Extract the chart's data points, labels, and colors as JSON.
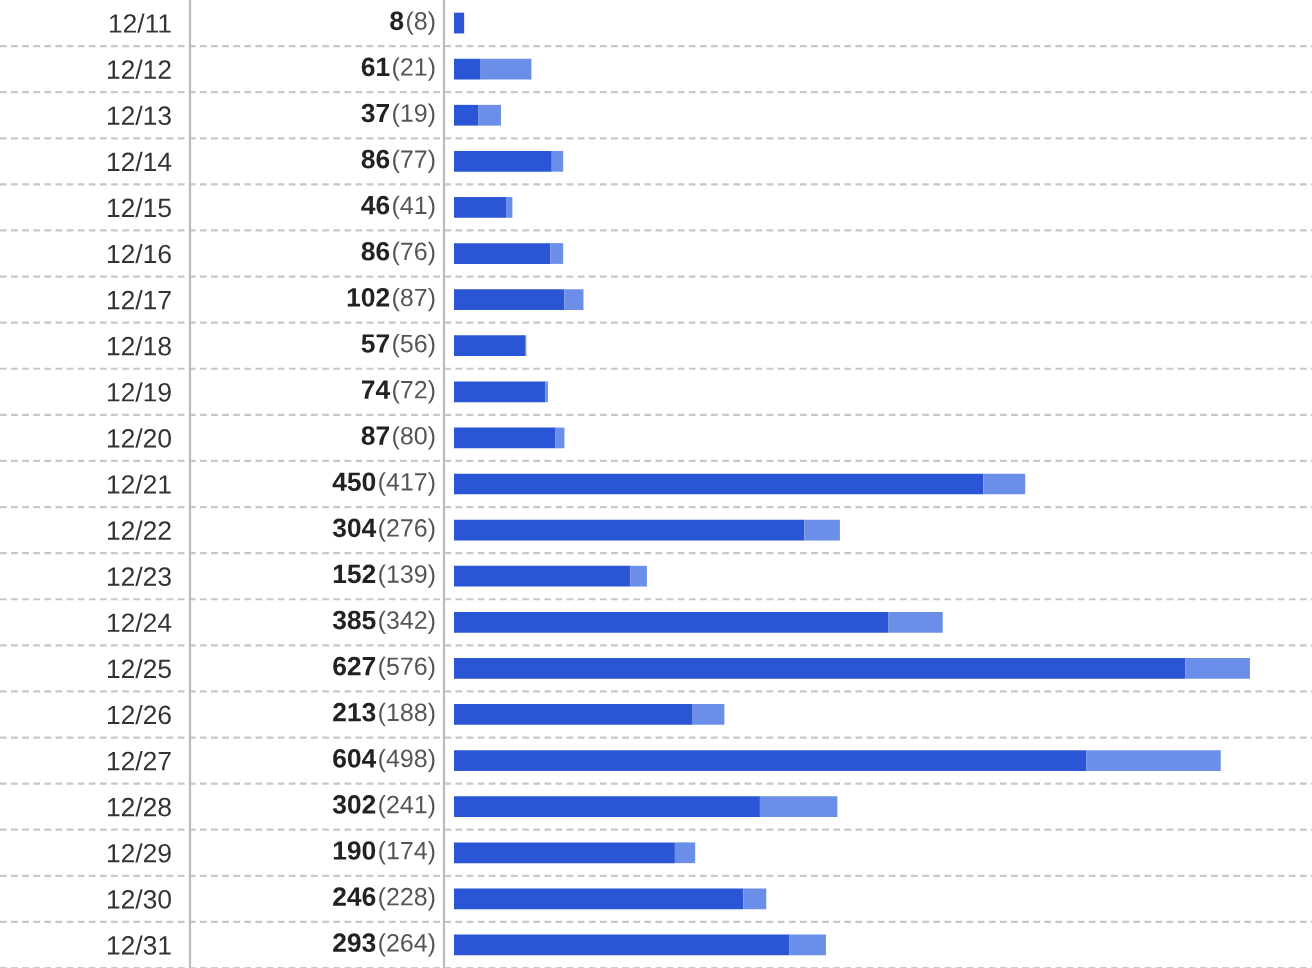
{
  "chart_data": {
    "type": "bar",
    "orientation": "horizontal",
    "stacked": true,
    "tick_labels": "y",
    "legend": false,
    "categories": [
      "12/11",
      "12/12",
      "12/13",
      "12/14",
      "12/15",
      "12/16",
      "12/17",
      "12/18",
      "12/19",
      "12/20",
      "12/21",
      "12/22",
      "12/23",
      "12/24",
      "12/25",
      "12/26",
      "12/27",
      "12/28",
      "12/29",
      "12/30",
      "12/31"
    ],
    "series": [
      {
        "color": "#2a56d6",
        "values": [
          8,
          21,
          19,
          77,
          41,
          76,
          87,
          56,
          72,
          80,
          417,
          276,
          139,
          342,
          576,
          188,
          498,
          241,
          174,
          228,
          264
        ],
        "value_labels": [
          "(8)",
          "(21)",
          "(19)",
          "(77)",
          "(41)",
          "(76)",
          "(87)",
          "(56)",
          "(72)",
          "(80)",
          "(417)",
          "(276)",
          "(139)",
          "(342)",
          "(576)",
          "(188)",
          "(498)",
          "(241)",
          "(174)",
          "(228)",
          "(264)"
        ]
      },
      {
        "color": "#6b8ee8",
        "values": [
          0,
          40,
          18,
          9,
          5,
          10,
          15,
          1,
          2,
          7,
          33,
          28,
          13,
          43,
          51,
          25,
          106,
          61,
          16,
          18,
          29
        ]
      }
    ],
    "totals": [
      "8",
      "61",
      "37",
      "86",
      "46",
      "86",
      "102",
      "57",
      "74",
      "87",
      "450",
      "304",
      "152",
      "385",
      "627",
      "213",
      "604",
      "302",
      "190",
      "246",
      "293"
    ]
  }
}
